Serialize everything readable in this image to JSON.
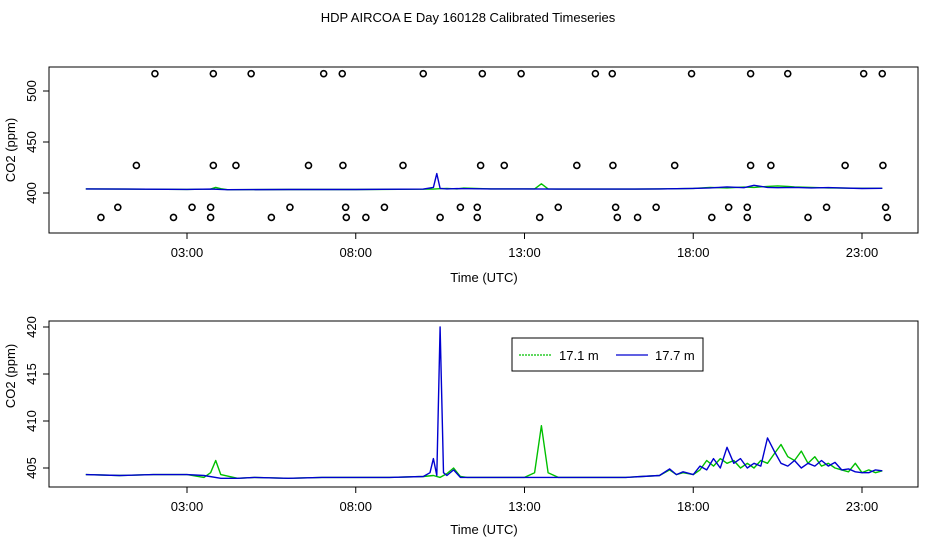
{
  "title": "HDP AIRCOA E  Day 160128  Calibrated Timeseries",
  "colors": {
    "green": "#00c000",
    "blue": "#0000d0",
    "black": "#000000"
  },
  "chart_data": [
    {
      "type": "scatter+line",
      "ylabel": "CO2 (ppm)",
      "xlabel": "Time (UTC)",
      "xlim": [
        0,
        24
      ],
      "ylim": [
        360,
        525
      ],
      "x_ticks": [
        3,
        8,
        13,
        18,
        23
      ],
      "x_tick_labels": [
        "03:00",
        "08:00",
        "13:00",
        "18:00",
        "23:00"
      ],
      "y_ticks": [
        400,
        450,
        500
      ],
      "y_tick_labels": [
        "400",
        "450",
        "500"
      ],
      "calibration_points": [
        {
          "x": 0.45,
          "y": 376
        },
        {
          "x": 0.95,
          "y": 386
        },
        {
          "x": 1.5,
          "y": 427
        },
        {
          "x": 2.05,
          "y": 517
        },
        {
          "x": 2.6,
          "y": 376
        },
        {
          "x": 3.15,
          "y": 386
        },
        {
          "x": 3.7,
          "y": 386
        },
        {
          "x": 3.7,
          "y": 376
        },
        {
          "x": 3.78,
          "y": 427
        },
        {
          "x": 3.78,
          "y": 517
        },
        {
          "x": 4.45,
          "y": 427
        },
        {
          "x": 4.9,
          "y": 517
        },
        {
          "x": 5.5,
          "y": 376
        },
        {
          "x": 6.05,
          "y": 386
        },
        {
          "x": 6.6,
          "y": 427
        },
        {
          "x": 7.05,
          "y": 517
        },
        {
          "x": 7.6,
          "y": 517
        },
        {
          "x": 7.62,
          "y": 427
        },
        {
          "x": 7.7,
          "y": 386
        },
        {
          "x": 7.72,
          "y": 376
        },
        {
          "x": 8.3,
          "y": 376
        },
        {
          "x": 8.85,
          "y": 386
        },
        {
          "x": 9.4,
          "y": 427
        },
        {
          "x": 10.0,
          "y": 517
        },
        {
          "x": 10.5,
          "y": 376
        },
        {
          "x": 11.1,
          "y": 386
        },
        {
          "x": 11.6,
          "y": 386
        },
        {
          "x": 11.6,
          "y": 376
        },
        {
          "x": 11.7,
          "y": 427
        },
        {
          "x": 11.75,
          "y": 517
        },
        {
          "x": 12.4,
          "y": 427
        },
        {
          "x": 12.9,
          "y": 517
        },
        {
          "x": 13.45,
          "y": 376
        },
        {
          "x": 14.0,
          "y": 386
        },
        {
          "x": 14.55,
          "y": 427
        },
        {
          "x": 15.1,
          "y": 517
        },
        {
          "x": 15.6,
          "y": 517
        },
        {
          "x": 15.62,
          "y": 427
        },
        {
          "x": 15.7,
          "y": 386
        },
        {
          "x": 15.75,
          "y": 376
        },
        {
          "x": 16.35,
          "y": 376
        },
        {
          "x": 16.9,
          "y": 386
        },
        {
          "x": 17.45,
          "y": 427
        },
        {
          "x": 17.95,
          "y": 517
        },
        {
          "x": 18.55,
          "y": 376
        },
        {
          "x": 19.05,
          "y": 386
        },
        {
          "x": 19.6,
          "y": 386
        },
        {
          "x": 19.6,
          "y": 376
        },
        {
          "x": 19.7,
          "y": 427
        },
        {
          "x": 19.7,
          "y": 517
        },
        {
          "x": 20.3,
          "y": 427
        },
        {
          "x": 20.8,
          "y": 517
        },
        {
          "x": 21.4,
          "y": 376
        },
        {
          "x": 21.95,
          "y": 386
        },
        {
          "x": 22.5,
          "y": 427
        },
        {
          "x": 23.05,
          "y": 517
        },
        {
          "x": 23.6,
          "y": 517
        },
        {
          "x": 23.62,
          "y": 427
        },
        {
          "x": 23.7,
          "y": 386
        },
        {
          "x": 23.75,
          "y": 376
        }
      ],
      "series": [
        {
          "name": "17.1 m",
          "color": "#00c000",
          "x": [
            0,
            3.0,
            3.7,
            3.85,
            4.0,
            4.2,
            6.0,
            8.0,
            10.3,
            10.5,
            10.7,
            11.0,
            11.2,
            12.0,
            13.3,
            13.5,
            13.7,
            14.0,
            16.0,
            17.0,
            18.0,
            18.5,
            19.0,
            19.5,
            19.8,
            20.2,
            20.5,
            20.8,
            21.0,
            21.5,
            22.0,
            22.5,
            23.0,
            23.6
          ],
          "values": [
            404,
            403.5,
            403.8,
            405.5,
            404.2,
            403.2,
            403.4,
            403.4,
            403.8,
            404.2,
            404.5,
            404.0,
            404.8,
            404.0,
            404.0,
            409.0,
            404.0,
            403.8,
            403.8,
            404.0,
            404.5,
            405.5,
            405.0,
            405.8,
            405.5,
            406.5,
            407.0,
            406.5,
            406.0,
            405.5,
            405.0,
            404.8,
            404.6,
            404.6
          ]
        },
        {
          "name": "17.7 m",
          "color": "#0000d0",
          "x": [
            0,
            3.0,
            3.7,
            4.2,
            6.0,
            8.0,
            10.0,
            10.3,
            10.4,
            10.5,
            10.6,
            10.7,
            11.0,
            12.0,
            13.0,
            14.0,
            16.0,
            17.0,
            18.0,
            18.5,
            19.0,
            19.5,
            19.8,
            20.2,
            20.5,
            21.0,
            21.5,
            22.0,
            22.5,
            23.0,
            23.6
          ],
          "values": [
            404,
            403.5,
            403.8,
            403.2,
            403.4,
            403.4,
            403.8,
            405.5,
            419.0,
            404.5,
            404.2,
            404.0,
            404.3,
            404.0,
            404.0,
            403.8,
            403.8,
            404.0,
            404.5,
            405.0,
            406.0,
            405.2,
            407.5,
            405.5,
            405.2,
            405.5,
            405.0,
            405.3,
            404.8,
            404.4,
            404.6
          ]
        }
      ]
    },
    {
      "type": "line",
      "ylabel": "CO2 (ppm)",
      "xlabel": "Time (UTC)",
      "xlim": [
        0,
        24
      ],
      "ylim": [
        403.5,
        420
      ],
      "x_ticks": [
        3,
        8,
        13,
        18,
        23
      ],
      "x_tick_labels": [
        "03:00",
        "08:00",
        "13:00",
        "18:00",
        "23:00"
      ],
      "y_ticks": [
        405,
        410,
        415,
        420
      ],
      "y_tick_labels": [
        "405",
        "410",
        "415",
        "420"
      ],
      "legend": {
        "position": "top-center",
        "labels": [
          "17.1 m",
          "17.7 m"
        ]
      },
      "series": [
        {
          "name": "17.1 m",
          "color": "#00c000",
          "x": [
            0,
            1.0,
            2.0,
            3.0,
            3.5,
            3.7,
            3.85,
            4.0,
            4.5,
            5.0,
            6.0,
            7.0,
            8.0,
            9.0,
            10.0,
            10.3,
            10.5,
            10.7,
            10.9,
            11.1,
            11.3,
            12.0,
            13.0,
            13.3,
            13.5,
            13.7,
            14.0,
            15.0,
            16.0,
            17.0,
            17.3,
            17.5,
            17.7,
            18.0,
            18.2,
            18.4,
            18.6,
            18.8,
            19.0,
            19.2,
            19.4,
            19.6,
            19.8,
            20.0,
            20.2,
            20.4,
            20.6,
            20.8,
            21.0,
            21.2,
            21.4,
            21.6,
            21.8,
            22.0,
            22.2,
            22.4,
            22.6,
            22.8,
            23.0,
            23.2,
            23.4,
            23.6
          ],
          "values": [
            404.3,
            404.2,
            404.3,
            404.3,
            404.0,
            404.5,
            405.8,
            404.3,
            403.9,
            404.0,
            403.9,
            404.0,
            404.0,
            404.0,
            404.1,
            404.2,
            404.0,
            404.4,
            405.0,
            404.1,
            404.0,
            404.0,
            404.0,
            404.5,
            409.5,
            404.5,
            404.0,
            404.0,
            404.0,
            404.2,
            404.8,
            404.3,
            404.5,
            404.3,
            404.8,
            405.8,
            405.2,
            406.0,
            405.5,
            405.8,
            405.0,
            405.5,
            405.0,
            405.8,
            405.5,
            406.5,
            407.5,
            406.2,
            405.8,
            406.8,
            405.5,
            406.2,
            405.2,
            405.5,
            405.0,
            404.8,
            404.6,
            405.5,
            404.5,
            404.8,
            404.5,
            404.7
          ]
        },
        {
          "name": "17.7 m",
          "color": "#0000d0",
          "x": [
            0,
            1.0,
            2.0,
            3.0,
            3.5,
            4.0,
            4.5,
            5.0,
            6.0,
            7.0,
            8.0,
            9.0,
            10.0,
            10.2,
            10.3,
            10.4,
            10.5,
            10.6,
            10.7,
            10.9,
            11.1,
            12.0,
            13.0,
            13.5,
            14.0,
            15.0,
            16.0,
            17.0,
            17.3,
            17.5,
            17.7,
            18.0,
            18.2,
            18.4,
            18.6,
            18.8,
            19.0,
            19.2,
            19.4,
            19.6,
            19.8,
            20.0,
            20.2,
            20.4,
            20.6,
            20.8,
            21.0,
            21.2,
            21.4,
            21.6,
            21.8,
            22.0,
            22.2,
            22.4,
            22.6,
            22.8,
            23.0,
            23.2,
            23.4,
            23.6
          ],
          "values": [
            404.3,
            404.2,
            404.3,
            404.3,
            404.2,
            403.9,
            403.9,
            404.0,
            403.9,
            404.0,
            404.0,
            404.0,
            404.1,
            404.5,
            406.0,
            404.2,
            420.0,
            404.5,
            404.2,
            404.8,
            404.0,
            404.0,
            404.0,
            404.0,
            404.0,
            404.0,
            404.0,
            404.2,
            404.9,
            404.3,
            404.6,
            404.3,
            405.2,
            404.8,
            406.0,
            405.0,
            407.2,
            405.5,
            406.0,
            405.0,
            405.5,
            405.2,
            408.2,
            406.8,
            405.5,
            405.2,
            405.8,
            405.0,
            405.5,
            405.2,
            405.8,
            405.2,
            405.6,
            404.8,
            404.9,
            404.6,
            404.5,
            404.5,
            404.8,
            404.7
          ]
        }
      ]
    }
  ]
}
